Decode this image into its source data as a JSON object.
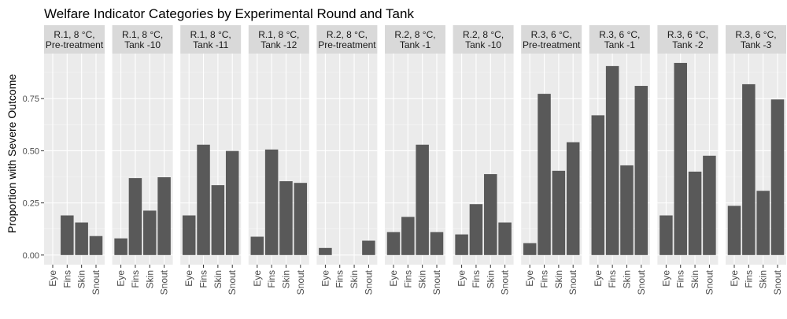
{
  "chart_data": {
    "type": "bar",
    "title": "Welfare Indicator Categories by Experimental Round and Tank",
    "xlabel": "",
    "ylabel": "Proportion with Severe Outcome",
    "ylim": [
      -0.046,
      0.966
    ],
    "yticks": [
      0,
      0.25,
      0.5,
      0.75
    ],
    "ytick_labels": [
      "0.00",
      "0.25",
      "0.50",
      "0.75"
    ],
    "grid": true,
    "categories": [
      "Eye",
      "Fins",
      "Skin",
      "Snout"
    ],
    "bar_color": "#595959",
    "panel_background": "#ebebeb",
    "strip_background": "#d9d9d9",
    "facets": [
      {
        "label": [
          "R.1, 8 °C,",
          "Pre-treatment"
        ],
        "values": [
          0,
          0.19,
          0.156,
          0.091
        ]
      },
      {
        "label": [
          "R.1, 8 °C,",
          "Tank -10"
        ],
        "values": [
          0.08,
          0.369,
          0.213,
          0.373
        ]
      },
      {
        "label": [
          "R.1, 8 °C,",
          "Tank -11"
        ],
        "values": [
          0.19,
          0.529,
          0.335,
          0.499
        ]
      },
      {
        "label": [
          "R.1, 8 °C,",
          "Tank -12"
        ],
        "values": [
          0.088,
          0.506,
          0.354,
          0.346
        ]
      },
      {
        "label": [
          "R.2, 8 °C,",
          "Pre-treatment"
        ],
        "values": [
          0.034,
          0,
          0,
          0.069
        ]
      },
      {
        "label": [
          "R.2, 8 °C,",
          "Tank -1"
        ],
        "values": [
          0.11,
          0.183,
          0.529,
          0.11
        ]
      },
      {
        "label": [
          "R.2, 8 °C,",
          "Tank -10"
        ],
        "values": [
          0.099,
          0.244,
          0.388,
          0.156
        ]
      },
      {
        "label": [
          "R.3, 6 °C,",
          "Pre-treatment"
        ],
        "values": [
          0.057,
          0.773,
          0.404,
          0.541
        ]
      },
      {
        "label": [
          "R.3, 6 °C,",
          "Tank -1"
        ],
        "values": [
          0.67,
          0.906,
          0.43,
          0.811
        ]
      },
      {
        "label": [
          "R.3, 6 °C,",
          "Tank -2"
        ],
        "values": [
          0.19,
          0.921,
          0.4,
          0.476
        ]
      },
      {
        "label": [
          "R.3, 6 °C,",
          "Tank -3"
        ],
        "values": [
          0.236,
          0.819,
          0.308,
          0.746
        ]
      }
    ]
  }
}
